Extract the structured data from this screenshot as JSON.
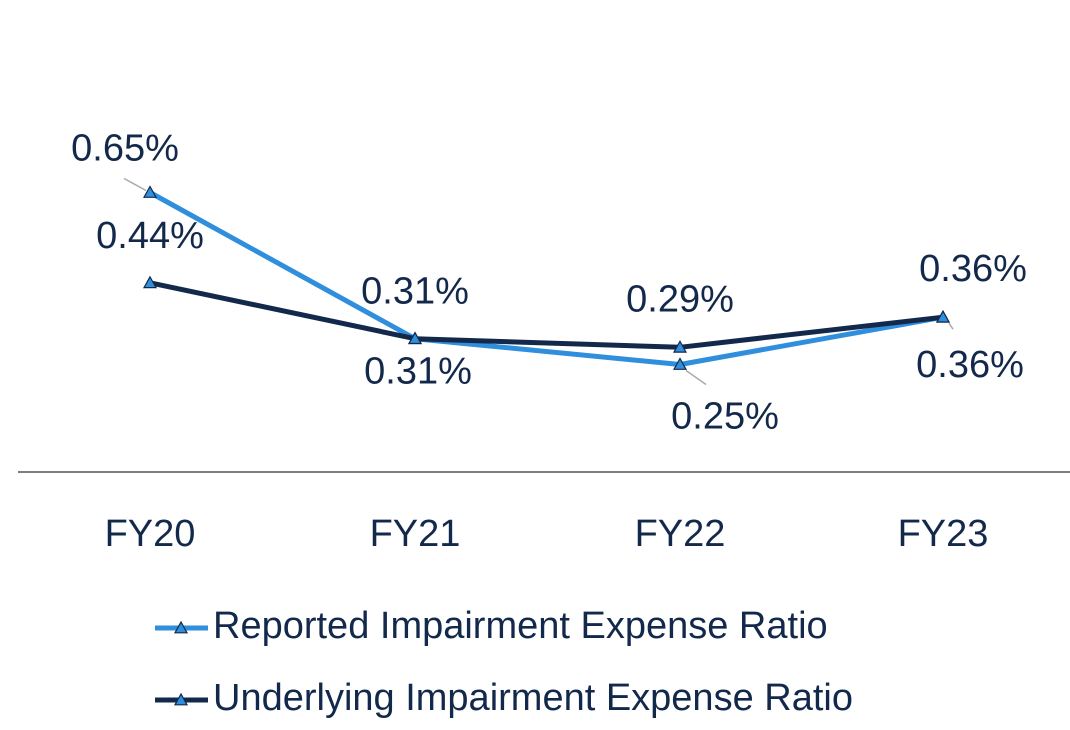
{
  "chart_data": {
    "type": "line",
    "categories": [
      "FY20",
      "FY21",
      "FY22",
      "FY23"
    ],
    "ylim": [
      0,
      1
    ],
    "series": [
      {
        "name": "Reported Impairment Expense Ratio",
        "color": "#2f8fdd",
        "values": [
          0.65,
          0.31,
          0.25,
          0.36
        ],
        "value_labels": [
          "0.65%",
          "0.31%",
          "0.25%",
          "0.36%"
        ]
      },
      {
        "name": "Underlying Impairment Expense Ratio",
        "color": "#13294b",
        "values": [
          0.44,
          0.31,
          0.29,
          0.36
        ],
        "value_labels": [
          "0.44%",
          "0.31%",
          "0.29%",
          "0.36%"
        ]
      }
    ]
  }
}
